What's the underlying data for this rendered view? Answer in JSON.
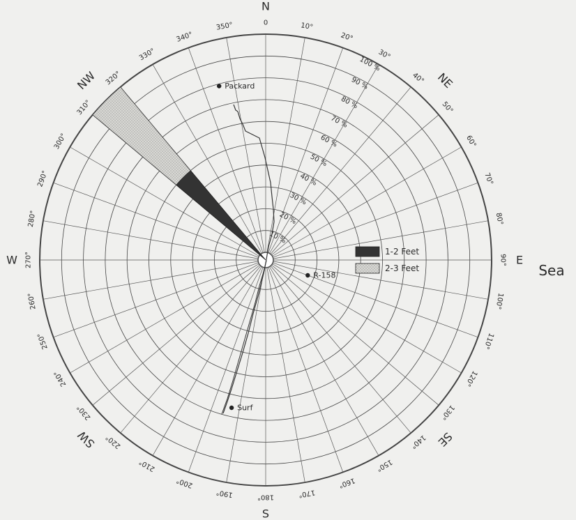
{
  "chart_data": {
    "type": "wind rose",
    "radial_unit": "%",
    "radial_ticks": [
      "10",
      "20",
      "30",
      "40",
      "50",
      "60",
      "70",
      "80",
      "90",
      "100"
    ],
    "radial_max": 100,
    "angle_ticks": [
      "0",
      "10°",
      "20°",
      "30°",
      "40°",
      "50°",
      "60°",
      "70°",
      "80°",
      "90°",
      "100°",
      "110°",
      "120°",
      "130°",
      "140°",
      "150°",
      "160°",
      "170°",
      "180°",
      "190°",
      "200°",
      "210°",
      "220°",
      "230°",
      "240°",
      "250°",
      "260°",
      "270°",
      "280°",
      "290°",
      "300°",
      "310°",
      "320°",
      "330°",
      "340°",
      "350°"
    ],
    "angle_tick_values": [
      0,
      10,
      20,
      30,
      40,
      50,
      60,
      70,
      80,
      90,
      100,
      110,
      120,
      130,
      140,
      150,
      160,
      170,
      180,
      190,
      200,
      210,
      220,
      230,
      240,
      250,
      260,
      270,
      280,
      290,
      300,
      310,
      320,
      330,
      340,
      350
    ],
    "compass_points": [
      {
        "label": "N",
        "angle": 0
      },
      {
        "label": "NE",
        "angle": 45
      },
      {
        "label": "E",
        "angle": 90
      },
      {
        "label": "SE",
        "angle": 135
      },
      {
        "label": "S",
        "angle": 180
      },
      {
        "label": "SW",
        "angle": 225
      },
      {
        "label": "W",
        "angle": 270
      },
      {
        "label": "NW",
        "angle": 315
      }
    ],
    "series": [
      {
        "name": "1-2 Feet",
        "color": "#333333",
        "direction_from": 310,
        "direction_to": 320,
        "from_pct": 0,
        "to_pct": 50
      },
      {
        "name": "2-3 Feet",
        "color": "#cfcfcb",
        "direction_from": 310,
        "direction_to": 320,
        "from_pct": 50,
        "to_pct": 100
      }
    ],
    "legend": {
      "placement": "right",
      "items": [
        "1-2 Feet",
        "2-3 Feet"
      ]
    },
    "places": [
      {
        "label": "Packard",
        "angle": 345,
        "pct": 79
      },
      {
        "label": "R-158",
        "angle": 110,
        "pct": 17
      },
      {
        "label": "Surf",
        "angle": 193,
        "pct": 66
      }
    ],
    "side_label": "Sea"
  }
}
